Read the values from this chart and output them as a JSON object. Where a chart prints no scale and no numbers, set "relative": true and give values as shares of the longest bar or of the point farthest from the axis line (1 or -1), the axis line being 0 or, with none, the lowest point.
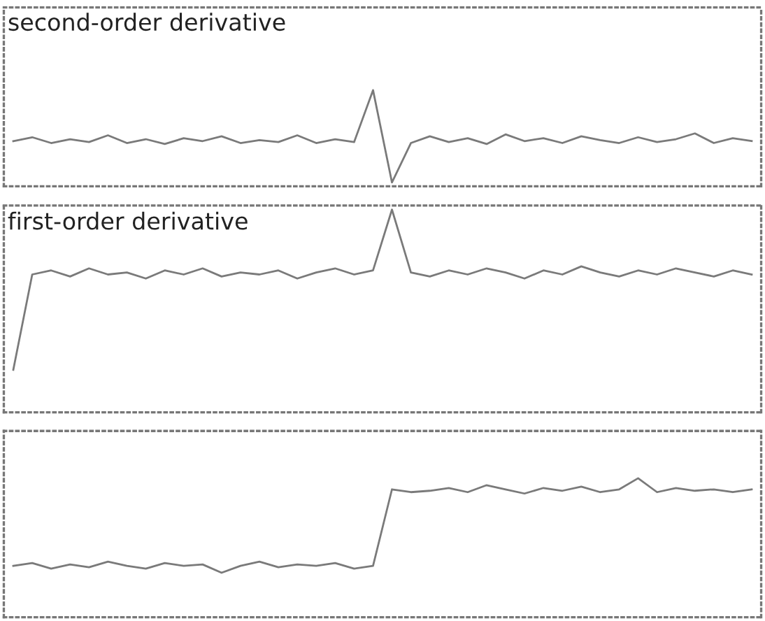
{
  "chart_data": [
    {
      "type": "line",
      "title": "second-order derivative",
      "relative": true,
      "tick_labels": false,
      "categories": [
        null,
        null,
        null,
        null,
        null,
        null,
        null,
        null,
        null,
        null,
        null,
        null,
        null,
        null,
        null,
        null,
        null,
        null,
        null,
        null,
        null,
        null,
        null,
        null,
        null,
        null,
        null,
        null,
        null,
        null,
        null,
        null,
        null,
        null,
        null,
        null,
        null,
        null,
        null,
        null
      ],
      "series": [
        {
          "color": "#7a7a7a",
          "values": [
            0.47,
            0.51,
            0.45,
            0.49,
            0.46,
            0.53,
            0.45,
            0.49,
            0.44,
            0.5,
            0.47,
            0.52,
            0.45,
            0.48,
            0.46,
            0.53,
            0.45,
            0.49,
            0.46,
            1.0,
            0.04,
            0.45,
            0.52,
            0.46,
            0.5,
            0.44,
            0.54,
            0.47,
            0.5,
            0.45,
            0.52,
            0.48,
            0.45,
            0.51,
            0.46,
            0.49,
            0.55,
            0.45,
            0.5,
            0.47
          ]
        }
      ]
    },
    {
      "type": "line",
      "title": "first-order derivative",
      "relative": true,
      "tick_labels": false,
      "categories": [
        null,
        null,
        null,
        null,
        null,
        null,
        null,
        null,
        null,
        null,
        null,
        null,
        null,
        null,
        null,
        null,
        null,
        null,
        null,
        null,
        null,
        null,
        null,
        null,
        null,
        null,
        null,
        null,
        null,
        null,
        null,
        null,
        null,
        null,
        null,
        null,
        null,
        null,
        null,
        null
      ],
      "series": [
        {
          "color": "#7a7a7a",
          "values": [
            0.21,
            0.68,
            0.7,
            0.67,
            0.71,
            0.68,
            0.69,
            0.66,
            0.7,
            0.68,
            0.71,
            0.67,
            0.69,
            0.68,
            0.7,
            0.66,
            0.69,
            0.71,
            0.68,
            0.7,
            1.0,
            0.69,
            0.67,
            0.7,
            0.68,
            0.71,
            0.69,
            0.66,
            0.7,
            0.68,
            0.72,
            0.69,
            0.67,
            0.7,
            0.68,
            0.71,
            0.69,
            0.67,
            0.7,
            0.68
          ]
        }
      ]
    },
    {
      "type": "line",
      "relative": true,
      "tick_labels": false,
      "categories": [
        null,
        null,
        null,
        null,
        null,
        null,
        null,
        null,
        null,
        null,
        null,
        null,
        null,
        null,
        null,
        null,
        null,
        null,
        null,
        null,
        null,
        null,
        null,
        null,
        null,
        null,
        null,
        null,
        null,
        null,
        null,
        null,
        null,
        null,
        null,
        null,
        null,
        null,
        null,
        null
      ],
      "series": [
        {
          "color": "#7a7a7a",
          "values": [
            0.37,
            0.39,
            0.35,
            0.38,
            0.36,
            0.4,
            0.37,
            0.35,
            0.39,
            0.37,
            0.38,
            0.32,
            0.37,
            0.4,
            0.36,
            0.38,
            0.37,
            0.39,
            0.35,
            0.37,
            0.92,
            0.9,
            0.91,
            0.93,
            0.9,
            0.95,
            0.92,
            0.89,
            0.93,
            0.91,
            0.94,
            0.9,
            0.92,
            1.0,
            0.9,
            0.93,
            0.91,
            0.92,
            0.9,
            0.92
          ]
        }
      ]
    }
  ]
}
